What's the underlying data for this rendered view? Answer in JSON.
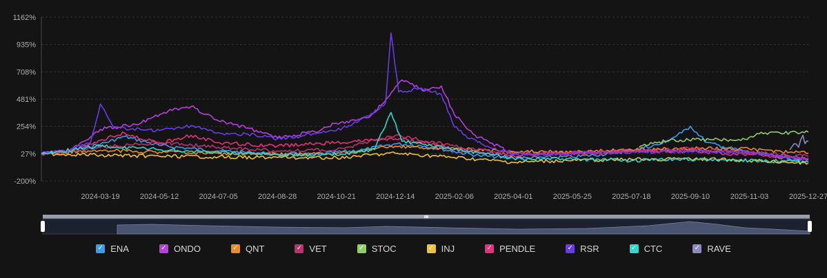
{
  "chart_data": {
    "type": "line",
    "y_unit": "%",
    "ylim": [
      -200,
      1162
    ],
    "y_ticks": [
      "1162%",
      "935%",
      "708%",
      "481%",
      "254%",
      "27%",
      "-200%"
    ],
    "x_ticks": [
      "2024-03-19",
      "2024-05-12",
      "2024-07-05",
      "2024-08-28",
      "2024-10-21",
      "2024-12-14",
      "2025-02-06",
      "2025-04-01",
      "2025-05-25",
      "2025-07-18",
      "2025-09-10",
      "2025-11-03",
      "2025-12-27"
    ],
    "x_range": [
      "2024-01-25",
      "2025-12-27"
    ],
    "grid": "horizontal-dashed",
    "legend_position": "bottom",
    "series": [
      {
        "name": "ENA",
        "color": "#3b9cf0",
        "points": [
          [
            "2024-01-25",
            27
          ],
          [
            "2024-02-20",
            55
          ],
          [
            "2024-03-19",
            105
          ],
          [
            "2024-04-10",
            170
          ],
          [
            "2024-05-12",
            95
          ],
          [
            "2024-06-10",
            70
          ],
          [
            "2024-07-05",
            50
          ],
          [
            "2024-08-10",
            35
          ],
          [
            "2024-08-28",
            25
          ],
          [
            "2024-10-01",
            20
          ],
          [
            "2024-11-15",
            60
          ],
          [
            "2024-12-14",
            110
          ],
          [
            "2025-01-10",
            90
          ],
          [
            "2025-02-06",
            45
          ],
          [
            "2025-03-01",
            10
          ],
          [
            "2025-04-01",
            -10
          ],
          [
            "2025-05-25",
            0
          ],
          [
            "2025-07-01",
            30
          ],
          [
            "2025-07-18",
            55
          ],
          [
            "2025-08-15",
            110
          ],
          [
            "2025-09-02",
            200
          ],
          [
            "2025-09-10",
            255
          ],
          [
            "2025-09-25",
            120
          ],
          [
            "2025-10-10",
            85
          ],
          [
            "2025-11-03",
            40
          ],
          [
            "2025-12-10",
            -15
          ],
          [
            "2025-12-27",
            -20
          ]
        ]
      },
      {
        "name": "ONDO",
        "color": "#b83ee0",
        "points": [
          [
            "2024-01-25",
            27
          ],
          [
            "2024-02-20",
            50
          ],
          [
            "2024-03-19",
            230
          ],
          [
            "2024-04-20",
            270
          ],
          [
            "2024-05-20",
            380
          ],
          [
            "2024-06-10",
            420
          ],
          [
            "2024-07-05",
            300
          ],
          [
            "2024-08-01",
            240
          ],
          [
            "2024-08-28",
            160
          ],
          [
            "2024-10-01",
            210
          ],
          [
            "2024-10-21",
            280
          ],
          [
            "2024-11-20",
            330
          ],
          [
            "2024-12-01",
            430
          ],
          [
            "2024-12-20",
            640
          ],
          [
            "2025-01-10",
            550
          ],
          [
            "2025-01-25",
            590
          ],
          [
            "2025-02-06",
            350
          ],
          [
            "2025-02-25",
            180
          ],
          [
            "2025-04-01",
            30
          ],
          [
            "2025-05-25",
            30
          ],
          [
            "2025-07-18",
            50
          ],
          [
            "2025-09-10",
            60
          ],
          [
            "2025-11-03",
            40
          ],
          [
            "2025-12-27",
            -10
          ]
        ]
      },
      {
        "name": "QNT",
        "color": "#f0882a",
        "points": [
          [
            "2024-01-25",
            27
          ],
          [
            "2024-03-19",
            55
          ],
          [
            "2024-05-12",
            40
          ],
          [
            "2024-07-05",
            30
          ],
          [
            "2024-08-28",
            20
          ],
          [
            "2024-10-21",
            25
          ],
          [
            "2024-12-14",
            90
          ],
          [
            "2025-02-06",
            70
          ],
          [
            "2025-04-01",
            45
          ],
          [
            "2025-05-25",
            40
          ],
          [
            "2025-07-18",
            60
          ],
          [
            "2025-09-10",
            70
          ],
          [
            "2025-11-03",
            65
          ],
          [
            "2025-12-10",
            40
          ],
          [
            "2025-12-27",
            30
          ]
        ]
      },
      {
        "name": "VET",
        "color": "#c0306a",
        "points": [
          [
            "2024-01-25",
            27
          ],
          [
            "2024-03-19",
            80
          ],
          [
            "2024-05-12",
            120
          ],
          [
            "2024-07-05",
            80
          ],
          [
            "2024-08-28",
            50
          ],
          [
            "2024-10-21",
            60
          ],
          [
            "2024-12-14",
            180
          ],
          [
            "2025-02-06",
            90
          ],
          [
            "2025-04-01",
            20
          ],
          [
            "2025-05-25",
            25
          ],
          [
            "2025-07-18",
            40
          ],
          [
            "2025-09-10",
            70
          ],
          [
            "2025-11-03",
            40
          ],
          [
            "2025-12-27",
            5
          ]
        ]
      },
      {
        "name": "STOC",
        "color": "#8fcf6a",
        "points": [
          [
            "2025-07-25",
            80
          ],
          [
            "2025-07-30",
            105
          ],
          [
            "2025-08-20",
            135
          ],
          [
            "2025-09-01",
            140
          ],
          [
            "2025-10-01",
            142
          ],
          [
            "2025-11-01",
            145
          ],
          [
            "2025-11-10",
            195
          ],
          [
            "2025-12-01",
            200
          ],
          [
            "2025-12-27",
            205
          ]
        ]
      },
      {
        "name": "INJ",
        "color": "#f2c230",
        "points": [
          [
            "2024-01-25",
            27
          ],
          [
            "2024-03-19",
            15
          ],
          [
            "2024-05-12",
            5
          ],
          [
            "2024-07-05",
            0
          ],
          [
            "2024-08-28",
            -5
          ],
          [
            "2024-10-21",
            -5
          ],
          [
            "2024-12-14",
            30
          ],
          [
            "2025-02-06",
            -5
          ],
          [
            "2025-04-01",
            -45
          ],
          [
            "2025-05-25",
            -30
          ],
          [
            "2025-07-18",
            -20
          ],
          [
            "2025-09-10",
            -15
          ],
          [
            "2025-11-03",
            -30
          ],
          [
            "2025-12-27",
            -50
          ]
        ]
      },
      {
        "name": "PENDLE",
        "color": "#e8307a",
        "points": [
          [
            "2024-01-25",
            27
          ],
          [
            "2024-02-20",
            50
          ],
          [
            "2024-03-19",
            140
          ],
          [
            "2024-04-10",
            200
          ],
          [
            "2024-05-12",
            110
          ],
          [
            "2024-06-10",
            180
          ],
          [
            "2024-07-05",
            120
          ],
          [
            "2024-08-28",
            90
          ],
          [
            "2024-10-21",
            120
          ],
          [
            "2024-12-14",
            150
          ],
          [
            "2025-01-10",
            120
          ],
          [
            "2025-02-06",
            60
          ],
          [
            "2025-04-01",
            10
          ],
          [
            "2025-05-25",
            40
          ],
          [
            "2025-07-18",
            50
          ],
          [
            "2025-09-10",
            45
          ],
          [
            "2025-11-03",
            20
          ],
          [
            "2025-12-27",
            -15
          ]
        ]
      },
      {
        "name": "RSR",
        "color": "#6a3ce8",
        "points": [
          [
            "2024-01-25",
            27
          ],
          [
            "2024-02-20",
            60
          ],
          [
            "2024-03-10",
            120
          ],
          [
            "2024-03-19",
            440
          ],
          [
            "2024-04-01",
            240
          ],
          [
            "2024-05-12",
            220
          ],
          [
            "2024-06-10",
            260
          ],
          [
            "2024-07-05",
            200
          ],
          [
            "2024-08-01",
            190
          ],
          [
            "2024-08-28",
            150
          ],
          [
            "2024-09-20",
            175
          ],
          [
            "2024-10-21",
            220
          ],
          [
            "2024-11-20",
            340
          ],
          [
            "2024-12-05",
            450
          ],
          [
            "2024-12-10",
            1030
          ],
          [
            "2024-12-17",
            540
          ],
          [
            "2025-01-05",
            570
          ],
          [
            "2025-01-25",
            520
          ],
          [
            "2025-02-06",
            250
          ],
          [
            "2025-02-20",
            150
          ],
          [
            "2025-03-10",
            80
          ],
          [
            "2025-04-01",
            20
          ],
          [
            "2025-05-25",
            30
          ],
          [
            "2025-07-18",
            40
          ],
          [
            "2025-09-10",
            50
          ],
          [
            "2025-11-03",
            30
          ],
          [
            "2025-12-27",
            -25
          ]
        ]
      },
      {
        "name": "CTC",
        "color": "#2ed9d0",
        "points": [
          [
            "2024-01-25",
            27
          ],
          [
            "2024-03-19",
            90
          ],
          [
            "2024-05-12",
            60
          ],
          [
            "2024-07-05",
            40
          ],
          [
            "2024-08-28",
            20
          ],
          [
            "2024-10-21",
            15
          ],
          [
            "2024-11-25",
            60
          ],
          [
            "2024-12-10",
            370
          ],
          [
            "2024-12-20",
            130
          ],
          [
            "2025-01-20",
            90
          ],
          [
            "2025-02-06",
            65
          ],
          [
            "2025-03-01",
            30
          ],
          [
            "2025-04-01",
            -10
          ],
          [
            "2025-05-25",
            -20
          ],
          [
            "2025-07-18",
            -30
          ],
          [
            "2025-09-10",
            -20
          ],
          [
            "2025-11-03",
            -30
          ],
          [
            "2025-12-27",
            -40
          ]
        ]
      },
      {
        "name": "RAVE",
        "color": "#8a8ac0",
        "points": [
          [
            "2025-12-10",
            60
          ],
          [
            "2025-12-14",
            110
          ],
          [
            "2025-12-18",
            80
          ],
          [
            "2025-12-22",
            180
          ],
          [
            "2025-12-24",
            110
          ],
          [
            "2025-12-27",
            130
          ]
        ]
      }
    ]
  }
}
